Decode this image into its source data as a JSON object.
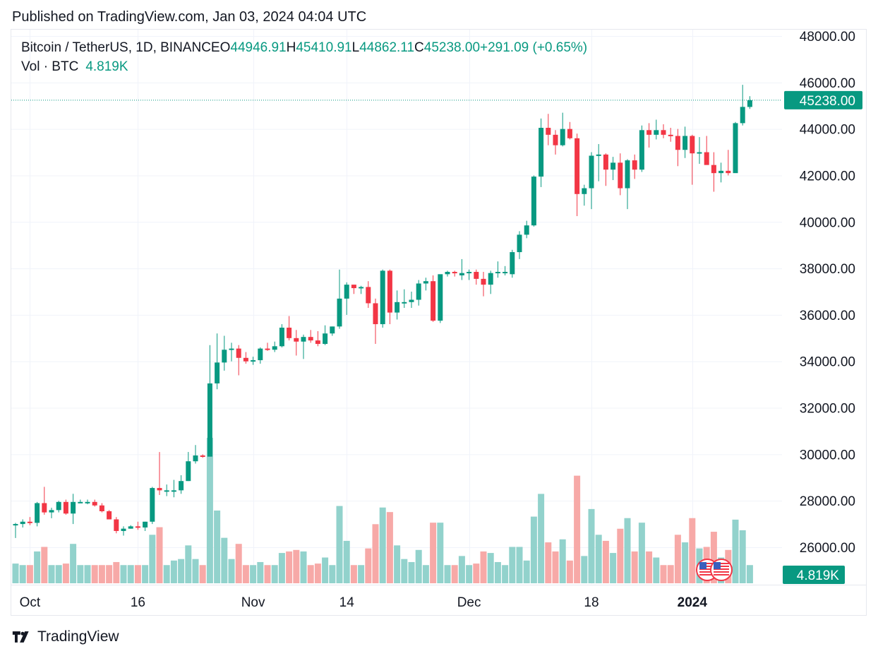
{
  "header": {
    "published": "Published on TradingView.com, Jan 03, 2024 04:04 UTC"
  },
  "legend": {
    "symbol": "Bitcoin / TetherUS, 1D, BINANCE",
    "open_label": "O",
    "open": "44946.91",
    "high_label": "H",
    "high": "45410.91",
    "low_label": "L",
    "low": "44862.11",
    "close_label": "C",
    "close": "45238.00",
    "change": "+291.09 (+0.65%)"
  },
  "volume_legend": {
    "label": "Vol · BTC",
    "value": "4.819K"
  },
  "last_price_tag": "45238.00",
  "last_volume_tag": "4.819K",
  "brand": {
    "name": "TradingView"
  },
  "colors": {
    "up": "#089981",
    "down": "#f23645",
    "up_volume": "#92d2cc",
    "down_volume": "#f7a9a7",
    "grid": "#f0f3fa"
  },
  "events_icon": "us-flag-event-icons",
  "chart_data": {
    "type": "candlestick",
    "interval": "1D",
    "y_ticks": [
      "48000.00",
      "46000.00",
      "44000.00",
      "42000.00",
      "40000.00",
      "38000.00",
      "36000.00",
      "34000.00",
      "32000.00",
      "30000.00",
      "28000.00",
      "26000.00"
    ],
    "y_tick_values": [
      48000,
      46000,
      44000,
      42000,
      40000,
      38000,
      36000,
      34000,
      32000,
      30000,
      28000,
      26000
    ],
    "ylim": [
      24600,
      48500
    ],
    "x_ticks": [
      {
        "label": "Oct",
        "index": 2
      },
      {
        "label": "16",
        "index": 17
      },
      {
        "label": "Nov",
        "index": 33
      },
      {
        "label": "14",
        "index": 46
      },
      {
        "label": "Dec",
        "index": 63
      },
      {
        "label": "18",
        "index": 80
      },
      {
        "label": "2024",
        "index": 94,
        "bold": true
      }
    ],
    "total_slots": 100,
    "last_price": 45238.0,
    "ohlc": [
      [
        26950,
        27050,
        26400,
        27000
      ],
      [
        27000,
        27200,
        26850,
        27100
      ],
      [
        27100,
        27300,
        26950,
        27050
      ],
      [
        27050,
        27950,
        26900,
        27900
      ],
      [
        27900,
        28600,
        27400,
        27500
      ],
      [
        27500,
        27700,
        27250,
        27600
      ],
      [
        27600,
        28000,
        27500,
        27950
      ],
      [
        27950,
        28050,
        27400,
        27450
      ],
      [
        27450,
        28300,
        27000,
        27950
      ],
      [
        27950,
        28050,
        27900,
        27950
      ],
      [
        27950,
        28050,
        27850,
        27950
      ],
      [
        27950,
        28050,
        27750,
        27800
      ],
      [
        27800,
        27900,
        27500,
        27550
      ],
      [
        27550,
        27600,
        27200,
        27200
      ],
      [
        27200,
        27300,
        26600,
        26700
      ],
      [
        26700,
        26900,
        26500,
        26800
      ],
      [
        26800,
        26950,
        26800,
        26900
      ],
      [
        26900,
        27100,
        26750,
        26850
      ],
      [
        26850,
        27100,
        26700,
        27100
      ],
      [
        27100,
        28600,
        27000,
        28550
      ],
      [
        28550,
        30100,
        28250,
        28450
      ],
      [
        28450,
        28700,
        28200,
        28450
      ],
      [
        28450,
        28900,
        28150,
        28450
      ],
      [
        28450,
        29100,
        28300,
        28850
      ],
      [
        28850,
        30100,
        28850,
        29700
      ],
      [
        29700,
        30400,
        29600,
        29950
      ],
      [
        29950,
        30000,
        29850,
        29900
      ],
      [
        29900,
        34700,
        29900,
        33050
      ],
      [
        33050,
        35200,
        32800,
        33950
      ],
      [
        33950,
        35100,
        33600,
        34500
      ],
      [
        34500,
        34800,
        34000,
        34550
      ],
      [
        34550,
        34700,
        33400,
        34150
      ],
      [
        34150,
        34400,
        33900,
        34000
      ],
      [
        34000,
        34200,
        33850,
        34050
      ],
      [
        34050,
        34600,
        33900,
        34550
      ],
      [
        34550,
        34800,
        34450,
        34500
      ],
      [
        34500,
        34850,
        34400,
        34650
      ],
      [
        34650,
        35600,
        34600,
        35450
      ],
      [
        35450,
        35950,
        34900,
        35000
      ],
      [
        35000,
        35350,
        34250,
        34850
      ],
      [
        34850,
        35150,
        34100,
        35050
      ],
      [
        35050,
        35350,
        34800,
        34900
      ],
      [
        34900,
        35300,
        34650,
        34750
      ],
      [
        34750,
        35550,
        34700,
        35200
      ],
      [
        35200,
        35500,
        35100,
        35500
      ],
      [
        35500,
        37950,
        35400,
        36700
      ],
      [
        36700,
        37400,
        36000,
        37300
      ],
      [
        37300,
        37300,
        36900,
        37150
      ],
      [
        37150,
        37250,
        36900,
        37200
      ],
      [
        37200,
        37450,
        36300,
        36500
      ],
      [
        36500,
        36700,
        34750,
        35600
      ],
      [
        35600,
        37950,
        35450,
        37900
      ],
      [
        37900,
        37950,
        35600,
        36100
      ],
      [
        36100,
        37050,
        35800,
        36550
      ],
      [
        36550,
        37100,
        36300,
        36550
      ],
      [
        36550,
        37000,
        36300,
        36650
      ],
      [
        36650,
        37500,
        36400,
        37350
      ],
      [
        37350,
        37600,
        37050,
        37450
      ],
      [
        37450,
        37700,
        35700,
        35750
      ],
      [
        35750,
        37650,
        35650,
        37750
      ],
      [
        37750,
        37900,
        37650,
        37850
      ],
      [
        37850,
        37900,
        37650,
        37800
      ],
      [
        37700,
        38400,
        37500,
        37800
      ],
      [
        37800,
        37950,
        37500,
        37850
      ],
      [
        37850,
        37950,
        37300,
        37550
      ],
      [
        37550,
        37850,
        36800,
        37300
      ],
      [
        37300,
        37900,
        36900,
        37800
      ],
      [
        37800,
        38300,
        37600,
        37850
      ],
      [
        37850,
        38100,
        37700,
        37850
      ],
      [
        37750,
        38800,
        37600,
        38700
      ],
      [
        38700,
        39600,
        38400,
        39450
      ],
      [
        39450,
        40050,
        39300,
        39850
      ],
      [
        39850,
        42000,
        39800,
        41950
      ],
      [
        41950,
        44450,
        41500,
        44050
      ],
      [
        44050,
        44650,
        43300,
        43750
      ],
      [
        43750,
        43950,
        42900,
        43300
      ],
      [
        43300,
        44700,
        43250,
        44000
      ],
      [
        44000,
        44300,
        43550,
        43600
      ],
      [
        43600,
        43800,
        40250,
        41200
      ],
      [
        41200,
        41600,
        40700,
        41450
      ],
      [
        41450,
        43000,
        40550,
        42850
      ],
      [
        42850,
        43350,
        41750,
        42900
      ],
      [
        42900,
        42950,
        41550,
        42250
      ],
      [
        42250,
        42800,
        41800,
        42550
      ],
      [
        42550,
        42950,
        41150,
        41450
      ],
      [
        41450,
        42700,
        40550,
        42650
      ],
      [
        42650,
        42900,
        41850,
        42250
      ],
      [
        42250,
        44150,
        42150,
        43950
      ],
      [
        43950,
        44250,
        43200,
        43750
      ],
      [
        43750,
        44400,
        43550,
        43950
      ],
      [
        43950,
        44200,
        43600,
        43750
      ],
      [
        43750,
        44050,
        43450,
        43700
      ],
      [
        43700,
        44000,
        42400,
        43100
      ],
      [
        43100,
        44100,
        42750,
        43700
      ],
      [
        43700,
        43750,
        41600,
        42950
      ],
      [
        42950,
        43650,
        42500,
        43000
      ],
      [
        43000,
        43700,
        42500,
        42450
      ],
      [
        42450,
        43000,
        41300,
        42100
      ],
      [
        42100,
        42550,
        41700,
        42200
      ],
      [
        42200,
        43100,
        42000,
        42100
      ],
      [
        42100,
        44300,
        42200,
        44250
      ],
      [
        44250,
        45900,
        44150,
        44950
      ],
      [
        44946.91,
        45410.91,
        44862.11,
        45238.0
      ]
    ],
    "volume_scale_max": 30
  }
}
